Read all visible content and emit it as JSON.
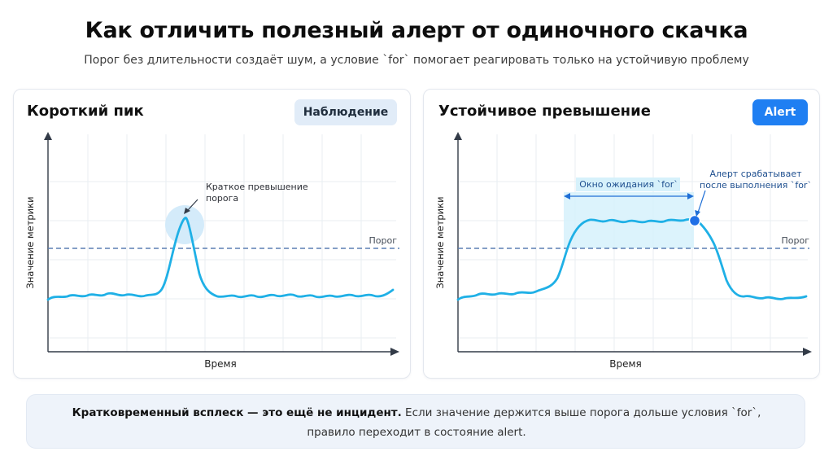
{
  "header": {
    "title": "Как отличить полезный алерт от одиночного скачка",
    "subtitle": "Порог без длительности создаёт шум, а условие `for` помогает реагировать только на устойчивую проблему"
  },
  "panels": {
    "left": {
      "title": "Короткий пик",
      "badge": "Наблюдение",
      "y_axis_label": "Значение метрики",
      "x_axis_label": "Время",
      "threshold_label": "Порог",
      "annotation_line1": "Краткое превышение",
      "annotation_line2": "порога"
    },
    "right": {
      "title": "Устойчивое превышение",
      "badge": "Alert",
      "y_axis_label": "Значение метрики",
      "x_axis_label": "Время",
      "threshold_label": "Порог",
      "window_label": "Окно ожидания `for`",
      "alert_note_line1": "Алерт срабатывает",
      "alert_note_line2": "после выполнения `for`"
    }
  },
  "footer": {
    "bold_text": "Кратковременный всплеск — это ещё не инцидент.",
    "text_line1": " Если значение держится выше порога дольше условия `for`,",
    "text_line2": "правило переходит в состояние alert."
  },
  "colors": {
    "series": "#1fb0e6",
    "threshold": "#5b7fb3",
    "accent": "#1f7ff2",
    "window_fill": "#d6f1fb"
  }
}
